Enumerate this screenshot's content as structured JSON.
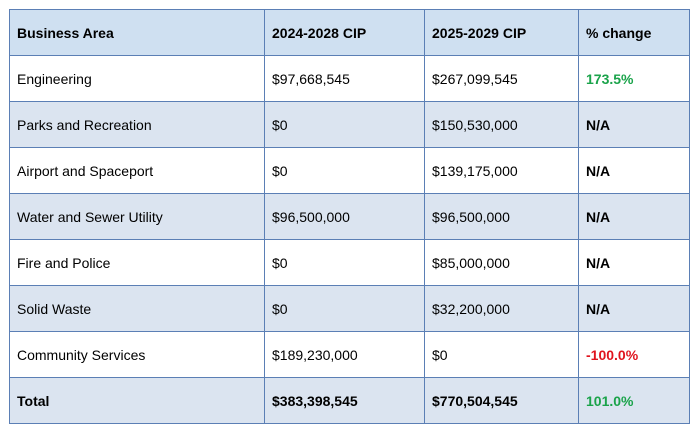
{
  "table": {
    "headers": [
      "Business Area",
      "2024-2028 CIP",
      "2025-2029 CIP",
      "% change"
    ],
    "rows": [
      {
        "area": "Engineering",
        "cip_2024_2028": "$97,668,545",
        "cip_2025_2029": "$267,099,545",
        "change": "173.5%",
        "change_status": "positive"
      },
      {
        "area": "Parks and Recreation",
        "cip_2024_2028": "$0",
        "cip_2025_2029": "$150,530,000",
        "change": "N/A",
        "change_status": "neutral"
      },
      {
        "area": "Airport and Spaceport",
        "cip_2024_2028": "$0",
        "cip_2025_2029": "$139,175,000",
        "change": "N/A",
        "change_status": "neutral"
      },
      {
        "area": "Water and Sewer Utility",
        "cip_2024_2028": "$96,500,000",
        "cip_2025_2029": "$96,500,000",
        "change": "N/A",
        "change_status": "neutral"
      },
      {
        "area": "Fire and Police",
        "cip_2024_2028": "$0",
        "cip_2025_2029": "$85,000,000",
        "change": "N/A",
        "change_status": "neutral"
      },
      {
        "area": "Solid Waste",
        "cip_2024_2028": "$0",
        "cip_2025_2029": "$32,200,000",
        "change": "N/A",
        "change_status": "neutral"
      },
      {
        "area": "Community Services",
        "cip_2024_2028": "$189,230,000",
        "cip_2025_2029": "$0",
        "change": "-100.0%",
        "change_status": "negative"
      }
    ],
    "total": {
      "area": "Total",
      "cip_2024_2028": "$383,398,545",
      "cip_2025_2029": "$770,504,545",
      "change": "101.0%",
      "change_status": "positive"
    }
  },
  "colors": {
    "header_bg": "#cfe0f1",
    "row_alt_bg": "#dbe4f0",
    "border": "#5b7fb5",
    "positive": "#1aa34a",
    "negative": "#e0141e"
  }
}
